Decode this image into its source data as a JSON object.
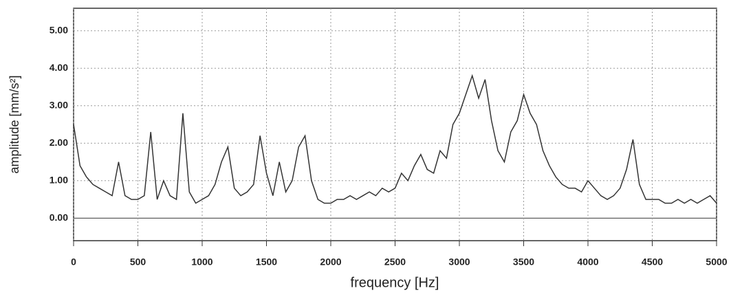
{
  "chart_data": {
    "type": "line",
    "xlabel": "frequency [Hz]",
    "ylabel": "amplitude [mm/s²]",
    "x": [
      0,
      50,
      100,
      150,
      200,
      250,
      300,
      350,
      400,
      450,
      500,
      550,
      600,
      650,
      700,
      750,
      800,
      850,
      900,
      950,
      1000,
      1050,
      1100,
      1150,
      1200,
      1250,
      1300,
      1350,
      1400,
      1450,
      1500,
      1550,
      1600,
      1650,
      1700,
      1750,
      1800,
      1850,
      1900,
      1950,
      2000,
      2050,
      2100,
      2150,
      2200,
      2250,
      2300,
      2350,
      2400,
      2450,
      2500,
      2550,
      2600,
      2650,
      2700,
      2750,
      2800,
      2850,
      2900,
      2950,
      3000,
      3050,
      3100,
      3150,
      3200,
      3250,
      3300,
      3350,
      3400,
      3450,
      3500,
      3550,
      3600,
      3650,
      3700,
      3750,
      3800,
      3850,
      3900,
      3950,
      4000,
      4050,
      4100,
      4150,
      4200,
      4250,
      4300,
      4350,
      4400,
      4450,
      4500,
      4550,
      4600,
      4650,
      4700,
      4750,
      4800,
      4850,
      4900,
      4950,
      5000
    ],
    "values": [
      2.5,
      1.4,
      1.1,
      0.9,
      0.8,
      0.7,
      0.6,
      1.5,
      0.6,
      0.5,
      0.5,
      0.6,
      2.3,
      0.5,
      1.0,
      0.6,
      0.5,
      2.8,
      0.7,
      0.4,
      0.5,
      0.6,
      0.9,
      1.5,
      1.9,
      0.8,
      0.6,
      0.7,
      0.9,
      2.2,
      1.2,
      0.6,
      1.5,
      0.7,
      1.0,
      1.9,
      2.2,
      1.0,
      0.5,
      0.4,
      0.4,
      0.5,
      0.5,
      0.6,
      0.5,
      0.6,
      0.7,
      0.6,
      0.8,
      0.7,
      0.8,
      1.2,
      1.0,
      1.4,
      1.7,
      1.3,
      1.2,
      1.8,
      1.6,
      2.5,
      2.8,
      3.3,
      3.8,
      3.2,
      3.7,
      2.6,
      1.8,
      1.5,
      2.3,
      2.6,
      3.3,
      2.8,
      2.5,
      1.8,
      1.4,
      1.1,
      0.9,
      0.8,
      0.8,
      0.7,
      1.0,
      0.8,
      0.6,
      0.5,
      0.6,
      0.8,
      1.3,
      2.1,
      0.9,
      0.5,
      0.5,
      0.5,
      0.4,
      0.4,
      0.5,
      0.4,
      0.5,
      0.4,
      0.5,
      0.6,
      0.4
    ],
    "color": "#333333",
    "xlim": [
      0,
      5000
    ],
    "xticks": [
      0,
      500,
      1000,
      1500,
      2000,
      2500,
      3000,
      3500,
      4000,
      4500,
      5000
    ],
    "ylim": [
      -0.6,
      5.6
    ],
    "yticks": [
      {
        "value": 0,
        "label": "0.00"
      },
      {
        "value": 1,
        "label": "1.00"
      },
      {
        "value": 2,
        "label": "2.00"
      },
      {
        "value": 3,
        "label": "3.00"
      },
      {
        "value": 4,
        "label": "4.00"
      },
      {
        "value": 5,
        "label": "5.00"
      }
    ],
    "grid": true
  }
}
